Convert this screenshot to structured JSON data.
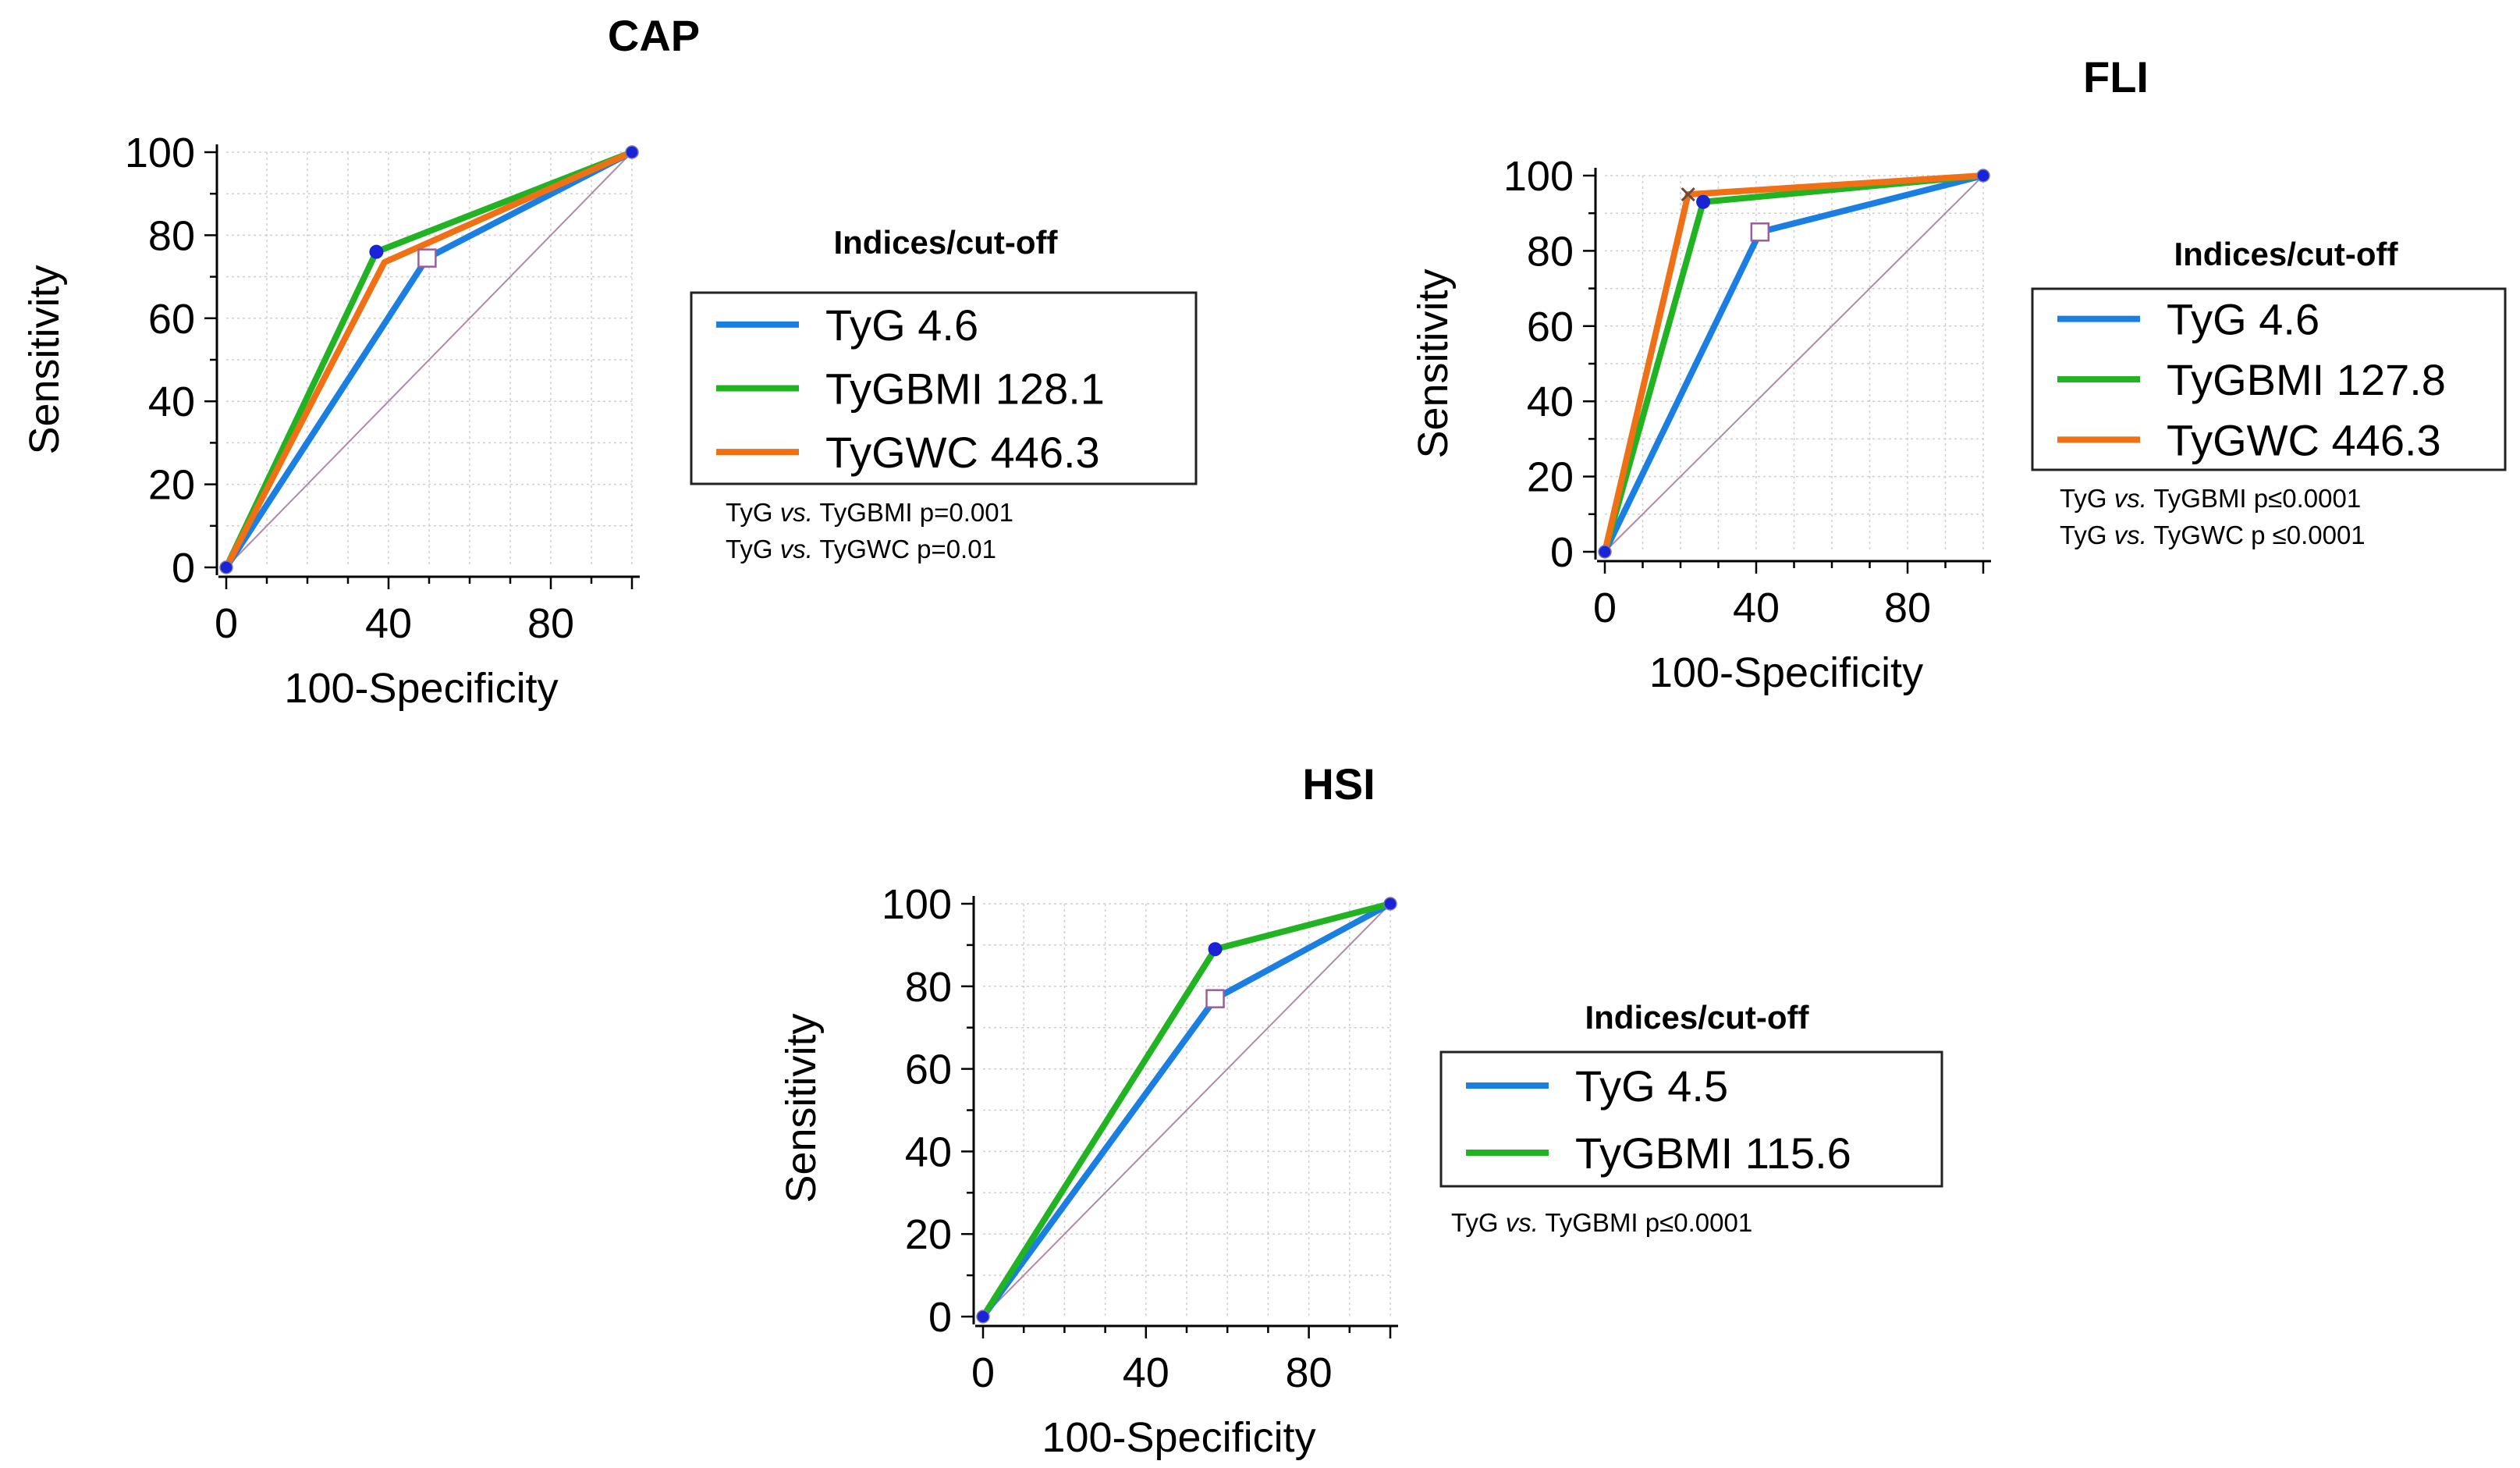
{
  "colors": {
    "TyG": "#1a7fe0",
    "TyGBMI": "#22b322",
    "TyGWC": "#f07016",
    "point": "#1a23d6",
    "cutoff_marker": "#a05aa0",
    "grid": "#cfcfcf",
    "diagonal": "#b08aa8"
  },
  "chart_data": [
    {
      "type": "line",
      "title": "CAP",
      "xlabel": "100-Specificity",
      "ylabel": "Sensitivity",
      "xlim": [
        0,
        100
      ],
      "ylim": [
        0,
        100
      ],
      "xticks": [
        0,
        40,
        80
      ],
      "yticks": [
        0,
        20,
        40,
        60,
        80,
        100
      ],
      "grid": true,
      "reference_diagonal": true,
      "legend_title": "Indices/cut-off",
      "series": [
        {
          "name": "TyG",
          "cutoff": "4.6",
          "color_key": "TyG",
          "x": [
            0,
            49.5,
            100
          ],
          "y": [
            0,
            74.5,
            100
          ],
          "marker": "square"
        },
        {
          "name": "TyGBMI",
          "cutoff": "128.1",
          "color_key": "TyGBMI",
          "x": [
            0,
            37,
            100
          ],
          "y": [
            0,
            76,
            100
          ],
          "marker": "dot"
        },
        {
          "name": "TyGWC",
          "cutoff": "446.3",
          "color_key": "TyGWC",
          "x": [
            0,
            39,
            100
          ],
          "y": [
            0,
            73.5,
            100
          ],
          "marker": "none"
        }
      ],
      "notes": [
        {
          "a": "TyG",
          "vs": "vs.",
          "b": "TyGBMI p=0.001"
        },
        {
          "a": "TyG",
          "vs": "vs.",
          "b": "TyGWC p=0.01"
        }
      ]
    },
    {
      "type": "line",
      "title": "FLI",
      "xlabel": "100-Specificity",
      "ylabel": "Sensitivity",
      "xlim": [
        0,
        100
      ],
      "ylim": [
        0,
        100
      ],
      "xticks": [
        0,
        40,
        80
      ],
      "yticks": [
        0,
        20,
        40,
        60,
        80,
        100
      ],
      "grid": true,
      "reference_diagonal": true,
      "legend_title": "Indices/cut-off",
      "series": [
        {
          "name": "TyG",
          "cutoff": "4.6",
          "color_key": "TyG",
          "x": [
            0,
            41,
            100
          ],
          "y": [
            0,
            85,
            100
          ],
          "marker": "square"
        },
        {
          "name": "TyGBMI",
          "cutoff": "127.8",
          "color_key": "TyGBMI",
          "x": [
            0,
            26,
            100
          ],
          "y": [
            0,
            93,
            100
          ],
          "marker": "dot"
        },
        {
          "name": "TyGWC",
          "cutoff": "446.3",
          "color_key": "TyGWC",
          "x": [
            0,
            22,
            100
          ],
          "y": [
            0,
            95,
            100
          ],
          "marker": "cross"
        }
      ],
      "notes": [
        {
          "a": "TyG",
          "vs": "vs.",
          "b": "TyGBMI p≤0.0001"
        },
        {
          "a": "TyG",
          "vs": "vs.",
          "b": "TyGWC p ≤0.0001"
        }
      ]
    },
    {
      "type": "line",
      "title": "HSI",
      "xlabel": "100-Specificity",
      "ylabel": "Sensitivity",
      "xlim": [
        0,
        100
      ],
      "ylim": [
        0,
        100
      ],
      "xticks": [
        0,
        40,
        80
      ],
      "yticks": [
        0,
        20,
        40,
        60,
        80,
        100
      ],
      "grid": true,
      "reference_diagonal": true,
      "legend_title": "Indices/cut-off",
      "series": [
        {
          "name": "TyG",
          "cutoff": "4.5",
          "color_key": "TyG",
          "x": [
            0,
            57,
            100
          ],
          "y": [
            0,
            77,
            100
          ],
          "marker": "square"
        },
        {
          "name": "TyGBMI",
          "cutoff": "115.6",
          "color_key": "TyGBMI",
          "x": [
            0,
            57,
            100
          ],
          "y": [
            0,
            89,
            100
          ],
          "marker": "dot"
        }
      ],
      "notes": [
        {
          "a": "TyG",
          "vs": "vs.",
          "b": "TyGBMI p≤0.0001"
        }
      ]
    }
  ]
}
